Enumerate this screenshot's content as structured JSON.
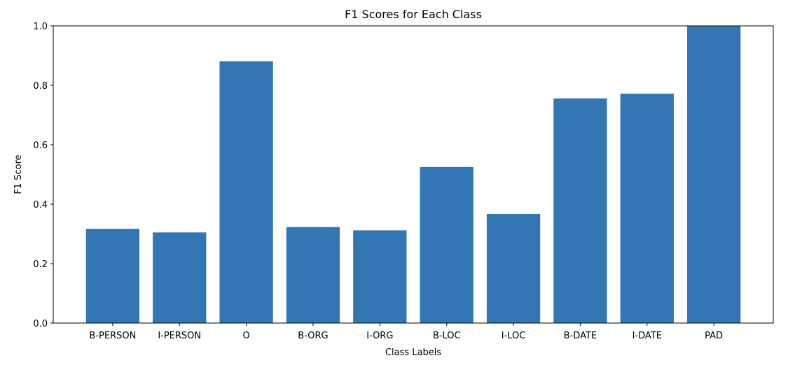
{
  "chart_data": {
    "type": "bar",
    "title": "F1 Scores for Each Class",
    "xlabel": "Class Labels",
    "ylabel": "F1 Score",
    "categories": [
      "B-PERSON",
      "I-PERSON",
      "O",
      "B-ORG",
      "I-ORG",
      "B-LOC",
      "I-LOC",
      "B-DATE",
      "I-DATE",
      "PAD"
    ],
    "values": [
      0.317,
      0.305,
      0.881,
      0.323,
      0.312,
      0.525,
      0.367,
      0.756,
      0.772,
      1.0
    ],
    "ylim": [
      0,
      1.0
    ],
    "yticks": [
      0.0,
      0.2,
      0.4,
      0.6,
      0.8,
      1.0
    ],
    "ytick_labels": [
      "0.0",
      "0.2",
      "0.4",
      "0.6",
      "0.8",
      "1.0"
    ],
    "grid": false,
    "bar_color": "#3277b4"
  }
}
